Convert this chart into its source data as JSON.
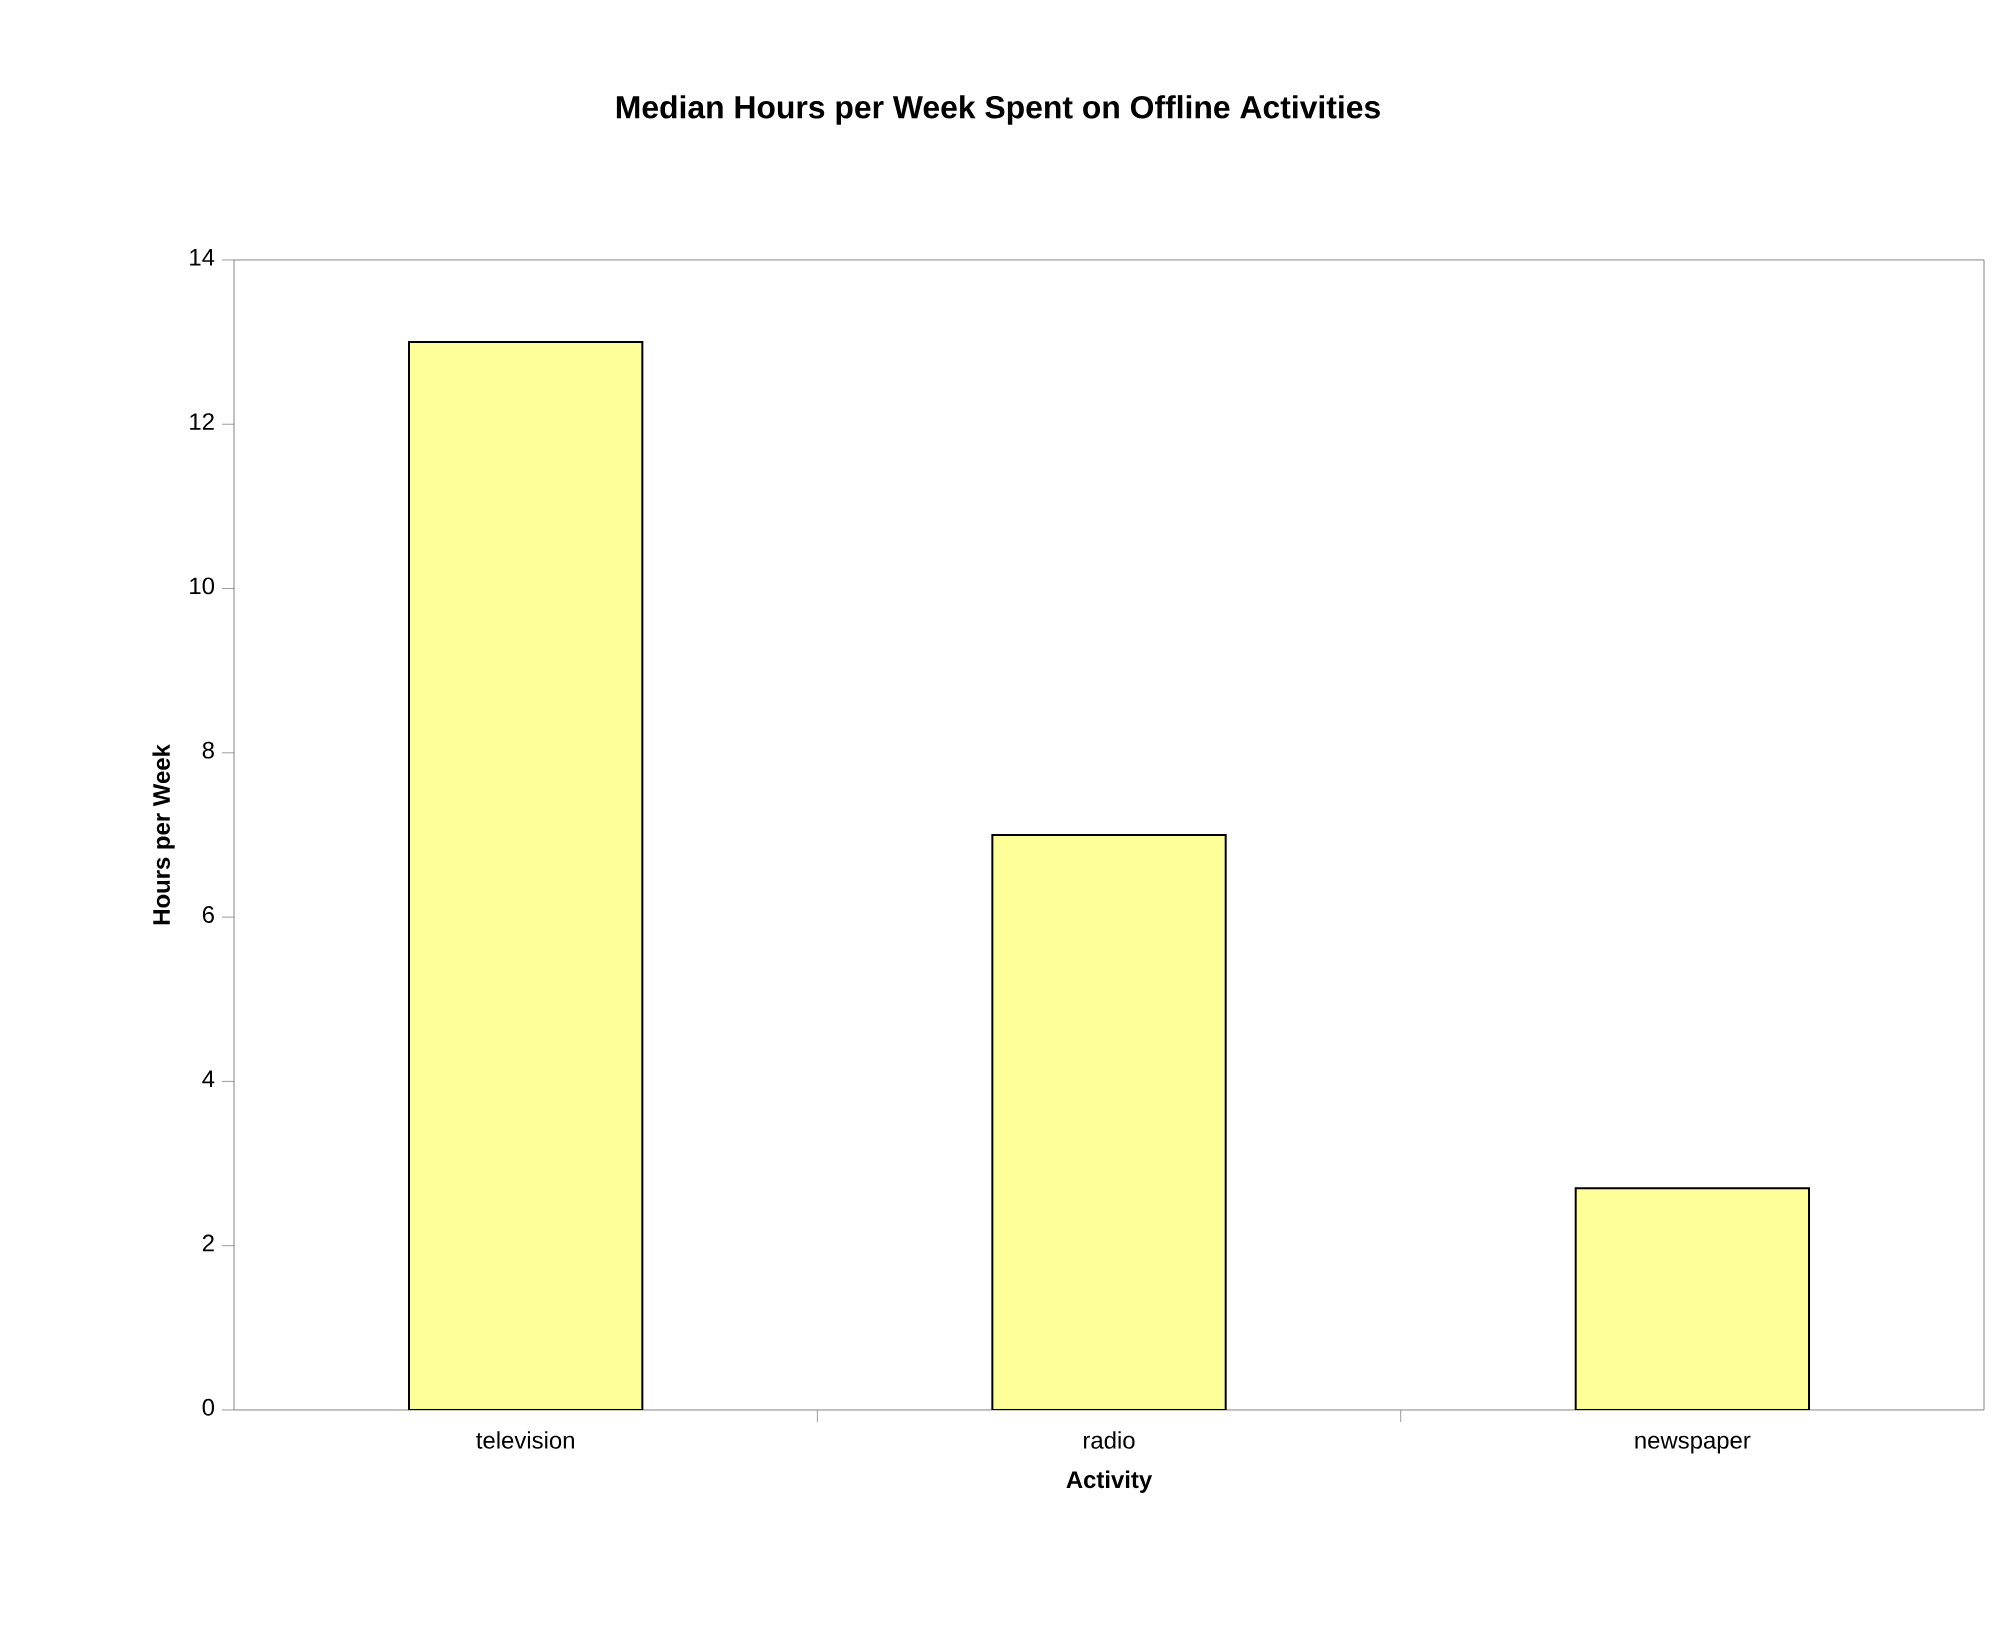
{
  "chart_data": {
    "type": "bar",
    "title": "Median Hours per Week Spent on Offline Activities",
    "xlabel": "Activity",
    "ylabel": "Hours per Week",
    "categories": [
      "television",
      "radio",
      "newspaper"
    ],
    "values": [
      13,
      7,
      2.7
    ],
    "color": "#ffff99",
    "ylim": [
      0,
      14
    ],
    "yticks": [
      0,
      2,
      4,
      6,
      8,
      10,
      12,
      14
    ],
    "grid": false
  }
}
